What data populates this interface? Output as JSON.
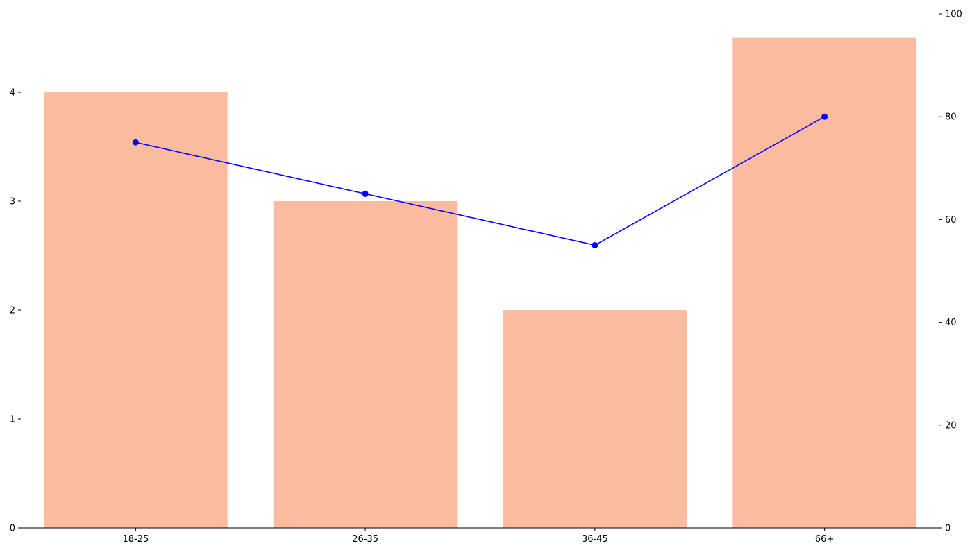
{
  "colors": {
    "bar": "#fdbba0",
    "line": "#0000ff",
    "axis": "#000000",
    "background": "#ffffff"
  },
  "chart_data": {
    "type": "bar",
    "title": "",
    "xlabel": "",
    "ylabel": "",
    "y2label": "",
    "grid": false,
    "categories": [
      "18-25",
      "26-35",
      "36-45",
      "66+"
    ],
    "series": [
      {
        "type": "bar",
        "axis": "left",
        "values": [
          4,
          3,
          2,
          4.5
        ]
      },
      {
        "type": "line",
        "axis": "right",
        "marker": "circle",
        "values": [
          75,
          65,
          55,
          80
        ]
      }
    ],
    "ylim": [
      0,
      4.72
    ],
    "y2lim": [
      0,
      100
    ],
    "yticks": [
      0,
      1,
      2,
      3,
      4
    ],
    "y2ticks": [
      0,
      20,
      40,
      60,
      80,
      100
    ]
  }
}
